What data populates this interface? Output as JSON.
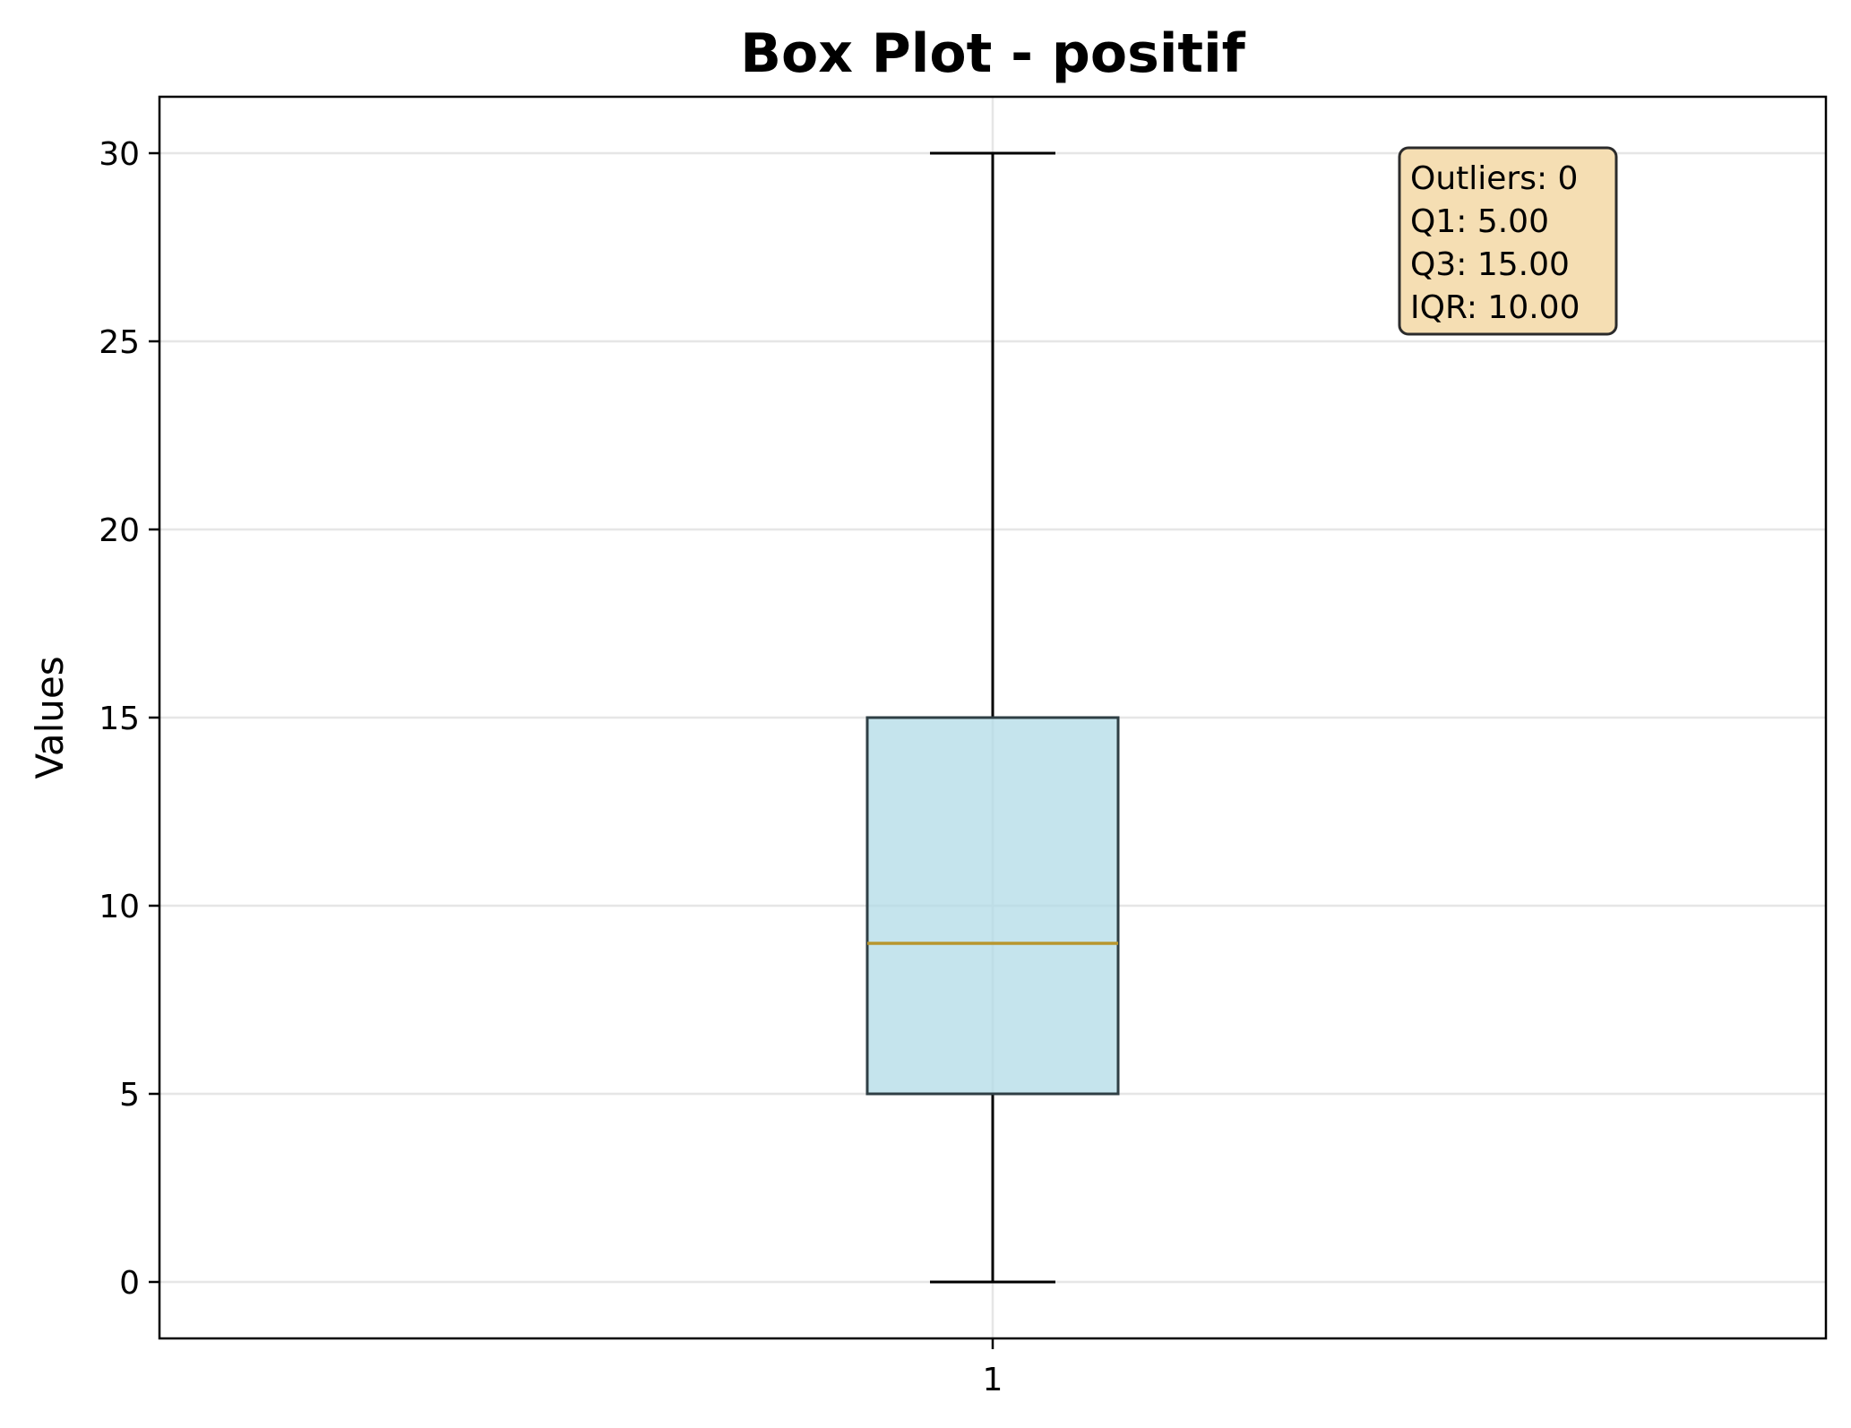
{
  "chart_data": {
    "type": "box",
    "title": "Box Plot - positif",
    "xlabel": "",
    "ylabel": "Values",
    "categories": [
      "1"
    ],
    "boxes": [
      {
        "whisker_low": 0,
        "q1": 5,
        "median": 9,
        "q3": 15,
        "whisker_high": 30
      }
    ],
    "ylim": [
      -1.5,
      31.5
    ],
    "yticks": [
      0,
      5,
      10,
      15,
      20,
      25,
      30
    ],
    "grid": true,
    "annotation": {
      "lines": [
        "Outliers: 0",
        "Q1: 5.00",
        "Q3: 15.00",
        "IQR: 10.00"
      ],
      "placement": "top-right"
    },
    "colors": {
      "box_fill": "#add8e6",
      "box_edge": "#2f3f45",
      "median": "#b8962e",
      "annotation_fill": "#f5deb3",
      "grid": "#e6e6e6"
    }
  }
}
